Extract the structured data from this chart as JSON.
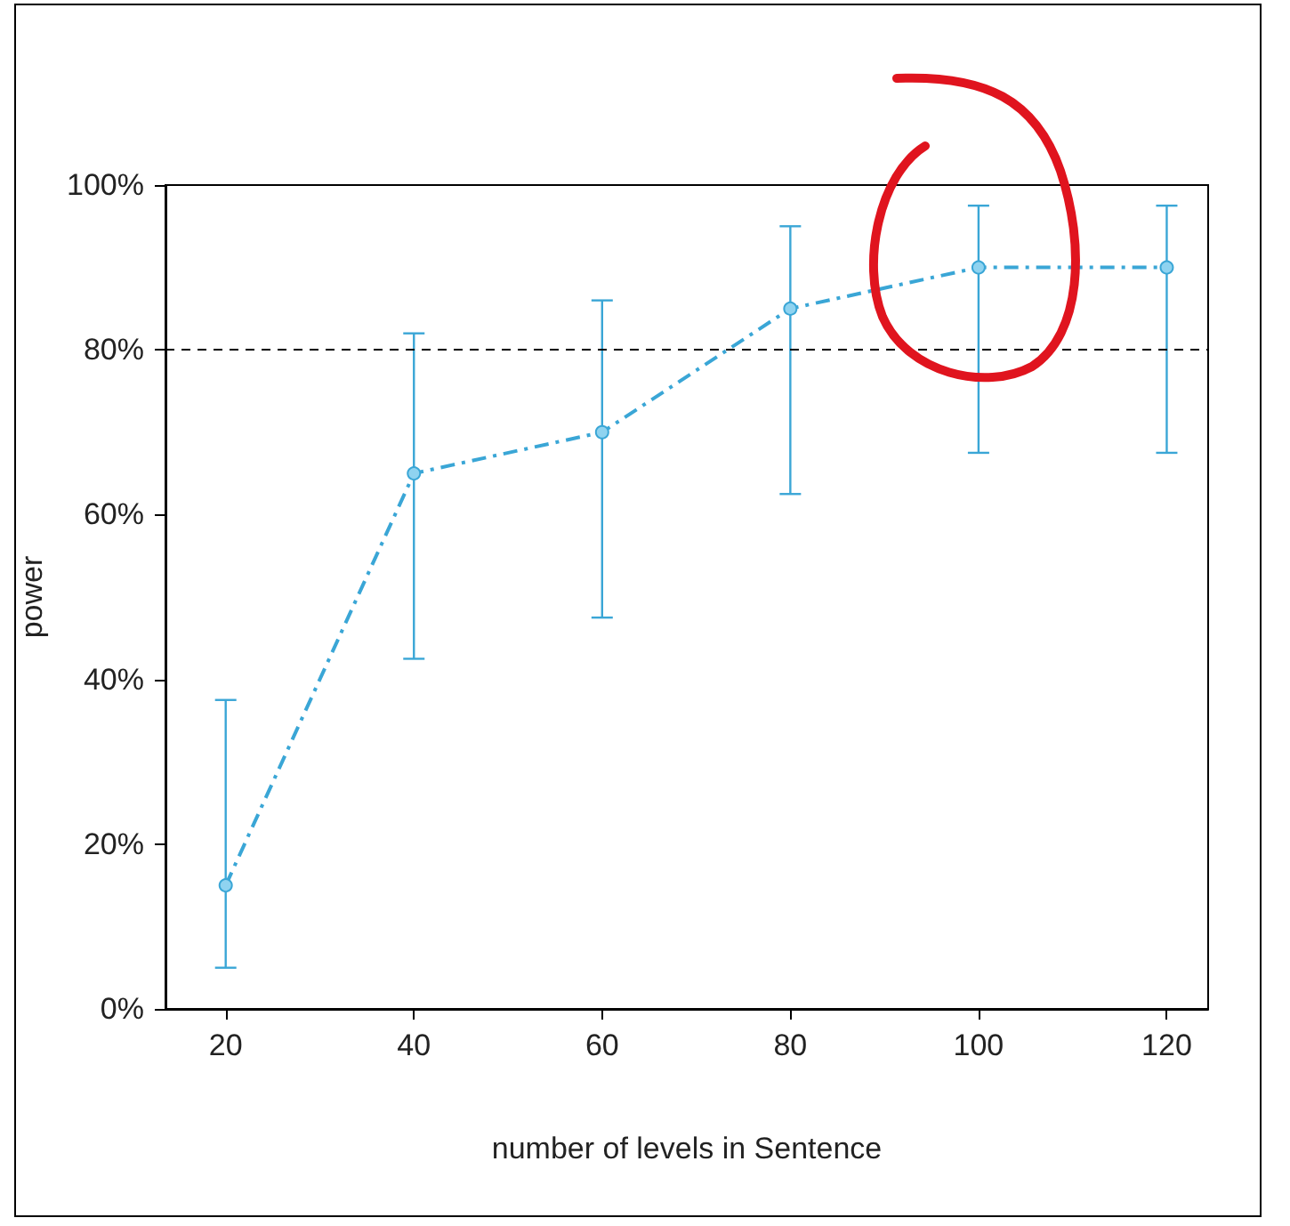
{
  "chart_data": {
    "type": "line",
    "xlabel": "number of levels in Sentence",
    "ylabel": "power",
    "x": [
      20,
      40,
      60,
      80,
      100,
      120
    ],
    "series": [
      {
        "color": "#3aa6d6",
        "values": [
          15,
          65,
          70,
          85,
          90,
          90
        ],
        "errors": [
          [
            5,
            37.5
          ],
          [
            42.5,
            82
          ],
          [
            47.5,
            86
          ],
          [
            62.5,
            95
          ],
          [
            67.5,
            97.5
          ],
          [
            67.5,
            97.5
          ]
        ]
      }
    ],
    "xlim": [
      13.6,
      124.4
    ],
    "xticks": [
      20,
      40,
      60,
      80,
      100,
      120
    ],
    "ylim": [
      0,
      100
    ],
    "yticks": [
      {
        "value": 0,
        "label": "0%"
      },
      {
        "value": 20,
        "label": "20%"
      },
      {
        "value": 40,
        "label": "40%"
      },
      {
        "value": 60,
        "label": "60%"
      },
      {
        "value": 80,
        "label": "80%"
      },
      {
        "value": 100,
        "label": "100%"
      }
    ],
    "ref_lines": [
      {
        "axis": "y",
        "value": 80,
        "color": "#000000",
        "line_style": "dashed"
      }
    ],
    "marker": "circle",
    "line_style": "dashed",
    "grid": false
  }
}
